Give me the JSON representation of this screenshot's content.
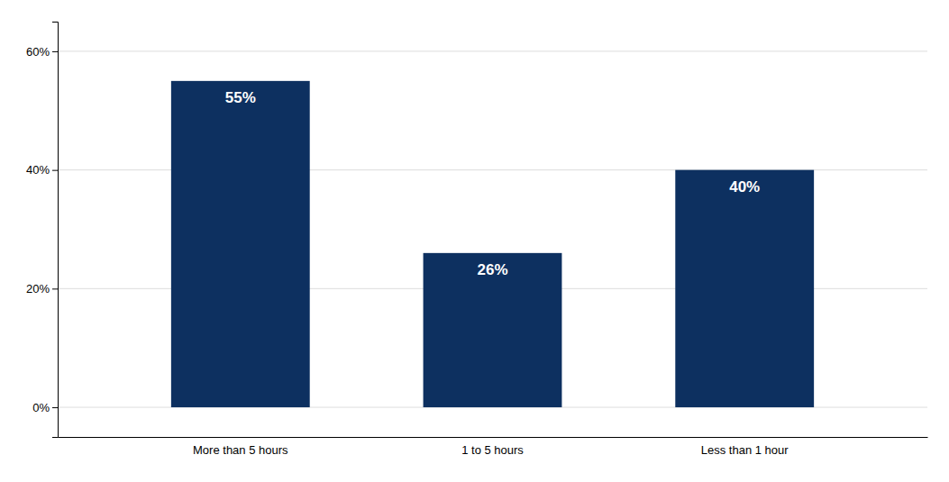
{
  "chart_data": {
    "type": "bar",
    "categories": [
      "More than 5 hours",
      "1 to 5 hours",
      "Less than 1 hour"
    ],
    "values": [
      55,
      26,
      40
    ],
    "value_labels": [
      "55%",
      "26%",
      "40%"
    ],
    "data_labels": true,
    "color": "#0d3060",
    "ylim": [
      -5,
      65
    ],
    "yticks": [
      {
        "value": 0,
        "label": "0%"
      },
      {
        "value": 20,
        "label": "20%"
      },
      {
        "value": 40,
        "label": "40%"
      },
      {
        "value": 60,
        "label": "60%"
      }
    ],
    "grid": true
  }
}
